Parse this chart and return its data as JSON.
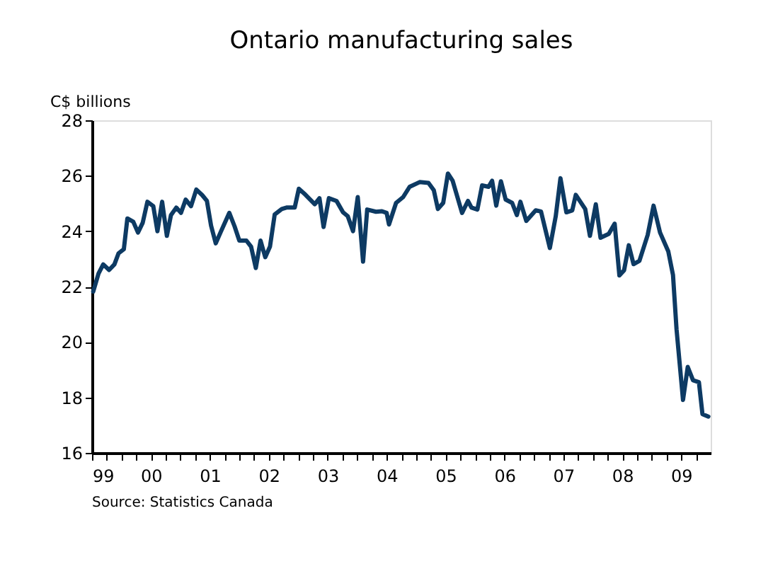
{
  "chart_data": {
    "type": "line",
    "title": "Ontario manufacturing sales",
    "ylabel": "C$ billions",
    "annotations": [
      "Source: Statistics Canada"
    ],
    "x": [
      1999.02,
      1999.11,
      1999.19,
      1999.29,
      1999.38,
      1999.45,
      1999.54,
      1999.6,
      1999.7,
      1999.78,
      1999.86,
      1999.94,
      2000.04,
      2000.11,
      2000.19,
      2000.27,
      2000.34,
      2000.43,
      2000.51,
      2000.59,
      2000.68,
      2000.77,
      2000.87,
      2000.95,
      2001.02,
      2001.1,
      2001.18,
      2001.33,
      2001.42,
      2001.5,
      2001.62,
      2001.7,
      2001.78,
      2001.86,
      2001.94,
      2002.02,
      2002.1,
      2002.22,
      2002.3,
      2002.44,
      2002.51,
      2002.6,
      2002.78,
      2002.86,
      2002.93,
      2003.02,
      2003.15,
      2003.26,
      2003.34,
      2003.43,
      2003.51,
      2003.6,
      2003.67,
      2003.82,
      2003.92,
      2004.0,
      2004.04,
      2004.16,
      2004.28,
      2004.39,
      2004.56,
      2004.71,
      2004.8,
      2004.87,
      2004.96,
      2005.04,
      2005.12,
      2005.28,
      2005.38,
      2005.44,
      2005.54,
      2005.62,
      2005.73,
      2005.79,
      2005.86,
      2005.94,
      2006.02,
      2006.13,
      2006.21,
      2006.27,
      2006.37,
      2006.53,
      2006.62,
      2006.77,
      2006.87,
      2006.95,
      2007.05,
      2007.15,
      2007.21,
      2007.37,
      2007.45,
      2007.55,
      2007.63,
      2007.77,
      2007.87,
      2007.95,
      2008.03,
      2008.11,
      2008.19,
      2008.29,
      2008.43,
      2008.53,
      2008.64,
      2008.78,
      2008.86,
      2008.92,
      2009.03,
      2009.11,
      2009.2,
      2009.3,
      2009.36,
      2009.46
    ],
    "series": [
      {
        "color": "#0d3a63",
        "values": [
          21.82,
          22.47,
          22.8,
          22.6,
          22.8,
          23.2,
          23.35,
          24.46,
          24.34,
          23.95,
          24.3,
          25.06,
          24.9,
          24.0,
          25.06,
          23.83,
          24.58,
          24.85,
          24.66,
          25.14,
          24.9,
          25.5,
          25.3,
          25.09,
          24.2,
          23.56,
          23.95,
          24.66,
          24.17,
          23.66,
          23.66,
          23.44,
          22.67,
          23.66,
          23.06,
          23.44,
          24.6,
          24.8,
          24.85,
          24.85,
          25.53,
          25.36,
          24.97,
          25.19,
          24.15,
          25.19,
          25.09,
          24.68,
          24.54,
          24.0,
          25.23,
          22.9,
          24.78,
          24.7,
          24.72,
          24.66,
          24.24,
          25.02,
          25.23,
          25.6,
          25.77,
          25.74,
          25.48,
          24.8,
          25.02,
          26.08,
          25.82,
          24.66,
          25.09,
          24.85,
          24.78,
          25.65,
          25.6,
          25.82,
          24.92,
          25.8,
          25.14,
          25.02,
          24.58,
          25.06,
          24.37,
          24.75,
          24.71,
          23.39,
          24.54,
          25.91,
          24.68,
          24.75,
          25.31,
          24.8,
          23.83,
          24.97,
          23.76,
          23.9,
          24.27,
          22.4,
          22.59,
          23.49,
          22.81,
          22.93,
          23.86,
          24.92,
          23.95,
          23.27,
          22.42,
          20.46,
          17.91,
          19.1,
          18.62,
          18.55,
          17.4,
          17.31
        ]
      }
    ],
    "xlim": [
      1999,
      2009.5
    ],
    "xticks": [
      {
        "value": 1999,
        "label": "99"
      },
      {
        "value": 1999.25,
        "label": null
      },
      {
        "value": 1999.5,
        "label": null
      },
      {
        "value": 1999.75,
        "label": null
      },
      {
        "value": 2000,
        "label": "00"
      },
      {
        "value": 2000.25,
        "label": null
      },
      {
        "value": 2000.5,
        "label": null
      },
      {
        "value": 2000.75,
        "label": null
      },
      {
        "value": 2001,
        "label": "01"
      },
      {
        "value": 2001.25,
        "label": null
      },
      {
        "value": 2001.5,
        "label": null
      },
      {
        "value": 2001.75,
        "label": null
      },
      {
        "value": 2002,
        "label": "02"
      },
      {
        "value": 2002.25,
        "label": null
      },
      {
        "value": 2002.5,
        "label": null
      },
      {
        "value": 2002.75,
        "label": null
      },
      {
        "value": 2003,
        "label": "03"
      },
      {
        "value": 2003.25,
        "label": null
      },
      {
        "value": 2003.5,
        "label": null
      },
      {
        "value": 2003.75,
        "label": null
      },
      {
        "value": 2004,
        "label": "04"
      },
      {
        "value": 2004.25,
        "label": null
      },
      {
        "value": 2004.5,
        "label": null
      },
      {
        "value": 2004.75,
        "label": null
      },
      {
        "value": 2005,
        "label": "05"
      },
      {
        "value": 2005.25,
        "label": null
      },
      {
        "value": 2005.5,
        "label": null
      },
      {
        "value": 2005.75,
        "label": null
      },
      {
        "value": 2006,
        "label": "06"
      },
      {
        "value": 2006.25,
        "label": null
      },
      {
        "value": 2006.5,
        "label": null
      },
      {
        "value": 2006.75,
        "label": null
      },
      {
        "value": 2007,
        "label": "07"
      },
      {
        "value": 2007.25,
        "label": null
      },
      {
        "value": 2007.5,
        "label": null
      },
      {
        "value": 2007.75,
        "label": null
      },
      {
        "value": 2008,
        "label": "08"
      },
      {
        "value": 2008.25,
        "label": null
      },
      {
        "value": 2008.5,
        "label": null
      },
      {
        "value": 2008.75,
        "label": null
      },
      {
        "value": 2009,
        "label": "09"
      },
      {
        "value": 2009.25,
        "label": null
      }
    ],
    "ylim": [
      16,
      28
    ],
    "yticks": [
      16,
      18,
      20,
      22,
      24,
      26,
      28
    ],
    "grid": false,
    "line_style": "solid",
    "marker": "none"
  }
}
